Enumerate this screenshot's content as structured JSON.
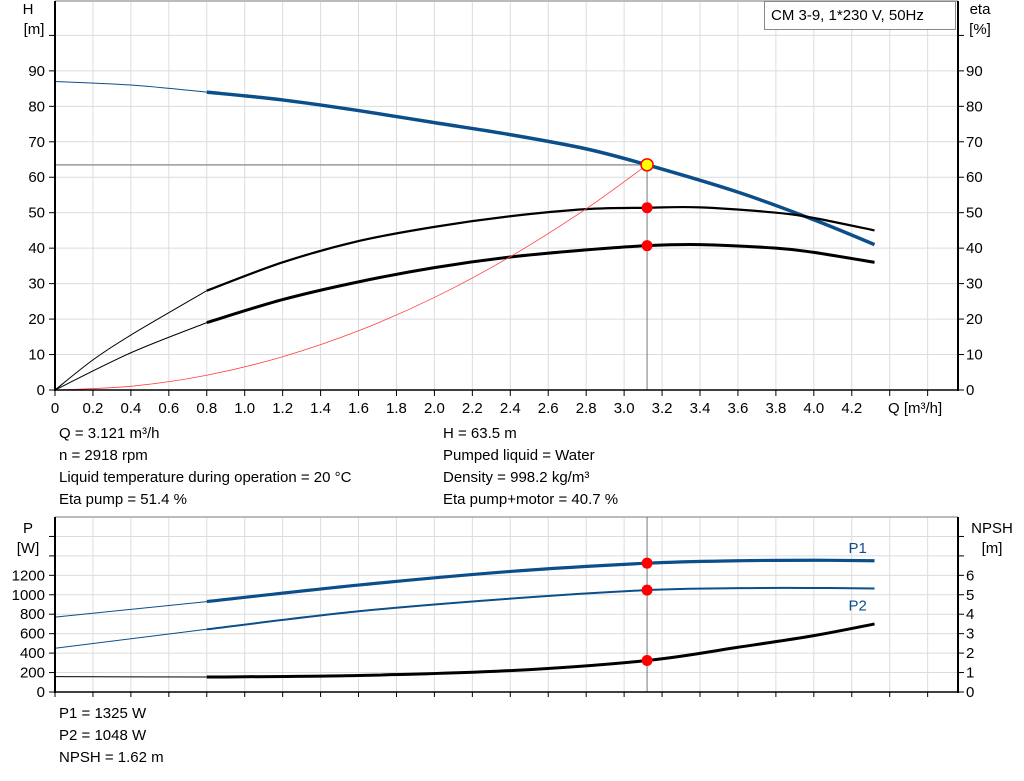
{
  "title_box": "CM 3-9, 1*230 V, 50Hz",
  "chart_data": [
    {
      "type": "line",
      "name_axis_left": "H",
      "unit_axis_left": "[m]",
      "name_axis_right": "eta",
      "unit_axis_right": "[%]",
      "xlabel": "Q [m³/h]",
      "xlim": [
        0,
        4.76
      ],
      "ylim": [
        0,
        109.7
      ],
      "grid": true,
      "x_ticks": [
        "0",
        "0.2",
        "0.4",
        "0.6",
        "0.8",
        "1.0",
        "1.2",
        "1.4",
        "1.6",
        "1.8",
        "2.0",
        "2.2",
        "2.4",
        "2.6",
        "2.8",
        "3.0",
        "3.2",
        "3.4",
        "3.6",
        "3.8",
        "4.0",
        "4.2"
      ],
      "y_ticks": [
        "0",
        "10",
        "20",
        "30",
        "40",
        "50",
        "60",
        "70",
        "80",
        "90"
      ],
      "duty_point": {
        "Q": 3.121,
        "H": 63.5,
        "eta_pump": 51.4,
        "eta_total": 40.7
      },
      "series": [
        {
          "id": "H",
          "color": "#0b4f8a",
          "thin_until": 0.8,
          "points": [
            [
              0,
              87
            ],
            [
              0.4,
              86
            ],
            [
              0.8,
              84
            ],
            [
              1.2,
              81.8
            ],
            [
              1.6,
              78.8
            ],
            [
              2.0,
              75.4
            ],
            [
              2.4,
              72
            ],
            [
              2.8,
              68
            ],
            [
              3.121,
              63.5
            ],
            [
              3.6,
              55.8
            ],
            [
              4.0,
              48
            ],
            [
              4.32,
              41
            ]
          ]
        },
        {
          "id": "eta_pump",
          "color": "#000000",
          "thin_until": 0.8,
          "points": [
            [
              0,
              0
            ],
            [
              0.2,
              8.5
            ],
            [
              0.4,
              15.5
            ],
            [
              0.8,
              28
            ],
            [
              1.2,
              36
            ],
            [
              1.6,
              42
            ],
            [
              2.0,
              46
            ],
            [
              2.4,
              49
            ],
            [
              2.8,
              51
            ],
            [
              3.121,
              51.4
            ],
            [
              3.4,
              51.5
            ],
            [
              3.8,
              50
            ],
            [
              4.0,
              48.5
            ],
            [
              4.32,
              45
            ]
          ]
        },
        {
          "id": "eta_total",
          "color": "#000000",
          "thin_until": 0.8,
          "points": [
            [
              0,
              0
            ],
            [
              0.4,
              10.5
            ],
            [
              0.8,
              19
            ],
            [
              1.2,
              25.5
            ],
            [
              1.6,
              30.5
            ],
            [
              2.0,
              34.5
            ],
            [
              2.4,
              37.5
            ],
            [
              2.8,
              39.5
            ],
            [
              3.121,
              40.7
            ],
            [
              3.4,
              41
            ],
            [
              3.8,
              40
            ],
            [
              4.0,
              38.8
            ],
            [
              4.32,
              36
            ]
          ]
        },
        {
          "id": "system_curve",
          "color": "#ff4040",
          "points": [
            [
              0,
              0
            ],
            [
              0.4,
              1.04
            ],
            [
              0.8,
              4.17
            ],
            [
              1.2,
              9.39
            ],
            [
              1.6,
              16.7
            ],
            [
              2.0,
              26.1
            ],
            [
              2.4,
              37.6
            ],
            [
              2.8,
              51.1
            ],
            [
              3.121,
              63.5
            ]
          ]
        }
      ]
    },
    {
      "type": "line",
      "name_axis_left": "P",
      "unit_axis_left": "[W]",
      "name_axis_right": "NPSH",
      "unit_axis_right": "[m]",
      "xlim": [
        0,
        4.76
      ],
      "ylim_left": [
        0,
        1800
      ],
      "ylim_right": [
        0,
        9
      ],
      "grid": true,
      "y_ticks_left": [
        "0",
        "200",
        "400",
        "600",
        "800",
        "1000",
        "1200"
      ],
      "y_ticks_right": [
        "0",
        "1",
        "2",
        "3",
        "4",
        "5",
        "6"
      ],
      "series": [
        {
          "id": "P1",
          "name": "P1",
          "color": "#0b4f8a",
          "axis": "left",
          "thin_until": 0.8,
          "points": [
            [
              0,
              770
            ],
            [
              0.8,
              930
            ],
            [
              1.6,
              1100
            ],
            [
              2.4,
              1240
            ],
            [
              3.121,
              1325
            ],
            [
              3.6,
              1350
            ],
            [
              4.0,
              1355
            ],
            [
              4.32,
              1350
            ]
          ]
        },
        {
          "id": "P2",
          "name": "P2",
          "color": "#0b4f8a",
          "axis": "left",
          "thin_until": 0.8,
          "points": [
            [
              0,
              450
            ],
            [
              0.8,
              645
            ],
            [
              1.6,
              830
            ],
            [
              2.4,
              960
            ],
            [
              3.121,
              1048
            ],
            [
              3.6,
              1068
            ],
            [
              4.0,
              1070
            ],
            [
              4.32,
              1065
            ]
          ]
        },
        {
          "id": "NPSH",
          "color": "#000000",
          "axis": "right",
          "thin_until": 0.8,
          "points": [
            [
              0,
              0.79
            ],
            [
              0.8,
              0.77
            ],
            [
              1.6,
              0.85
            ],
            [
              2.4,
              1.1
            ],
            [
              3.121,
              1.62
            ],
            [
              3.6,
              2.3
            ],
            [
              4.0,
              2.9
            ],
            [
              4.32,
              3.5
            ]
          ]
        }
      ],
      "duty_point": {
        "Q": 3.121,
        "P1": 1325,
        "P2": 1048,
        "NPSH": 1.62
      }
    }
  ],
  "info_left": [
    "Q = 3.121 m³/h",
    "n = 2918 rpm",
    "Liquid temperature during operation = 20 °C",
    "Eta pump = 51.4 %"
  ],
  "info_right": [
    "H = 63.5 m",
    "Pumped liquid = Water",
    "Density = 998.2 kg/m³",
    "Eta pump+motor = 40.7 %"
  ],
  "info_bottom": [
    "P1 = 1325 W",
    "P2 = 1048 W",
    "NPSH = 1.62 m"
  ]
}
